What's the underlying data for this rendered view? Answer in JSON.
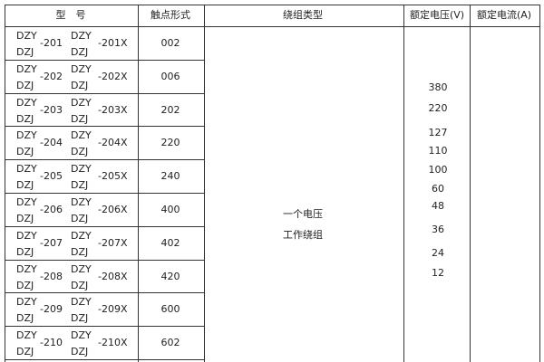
{
  "headers": {
    "model": "型　号",
    "contact": "触点形式",
    "winding": "绕组类型",
    "voltage": "额定电压(V)",
    "current": "额定电流(A)"
  },
  "rows": [
    {
      "a": "DZY",
      "b": "DZJ",
      "num": "-201",
      "c": "DZY",
      "d": "DZJ",
      "numx": "-201X",
      "contact": "002"
    },
    {
      "a": "DZY",
      "b": "DZJ",
      "num": "-202",
      "c": "DZY",
      "d": "DZJ",
      "numx": "-202X",
      "contact": "006"
    },
    {
      "a": "DZY",
      "b": "DZJ",
      "num": "-203",
      "c": "DZY",
      "d": "DZJ",
      "numx": "-203X",
      "contact": "202"
    },
    {
      "a": "DZY",
      "b": "DZJ",
      "num": "-204",
      "c": "DZY",
      "d": "DZJ",
      "numx": "-204X",
      "contact": "220"
    },
    {
      "a": "DZY",
      "b": "DZJ",
      "num": "-205",
      "c": "DZY",
      "d": "DZJ",
      "numx": "-205X",
      "contact": "240"
    },
    {
      "a": "DZY",
      "b": "DZJ",
      "num": "-206",
      "c": "DZY",
      "d": "DZJ",
      "numx": "-206X",
      "contact": "400"
    },
    {
      "a": "DZY",
      "b": "DZJ",
      "num": "-207",
      "c": "DZY",
      "d": "DZJ",
      "numx": "-207X",
      "contact": "402"
    },
    {
      "a": "DZY",
      "b": "DZJ",
      "num": "-208",
      "c": "DZY",
      "d": "DZJ",
      "numx": "-208X",
      "contact": "420"
    },
    {
      "a": "DZY",
      "b": "DZJ",
      "num": "-209",
      "c": "DZY",
      "d": "DZJ",
      "numx": "-209X",
      "contact": "600"
    },
    {
      "a": "DZY",
      "b": "DZJ",
      "num": "-210",
      "c": "DZY",
      "d": "DZJ",
      "numx": "-210X",
      "contact": "602"
    }
  ],
  "winding": {
    "line1": "一个电压",
    "line2": "工作绕组"
  },
  "voltages": [
    "380",
    "220",
    "127",
    "110",
    "100",
    "60",
    "48",
    "36",
    "24",
    "12"
  ]
}
